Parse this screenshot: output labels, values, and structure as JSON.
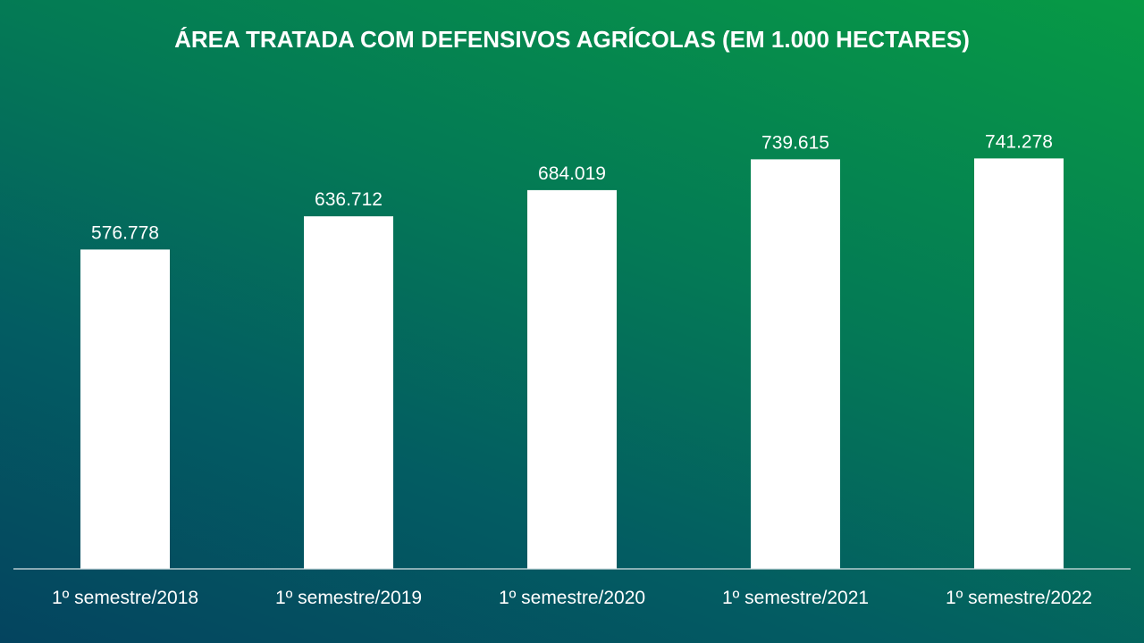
{
  "chart_data": {
    "type": "bar",
    "title": "ÁREA TRATADA COM DEFENSIVOS AGRÍCOLAS (EM 1.000 HECTARES)",
    "xlabel": "",
    "ylabel": "",
    "categories": [
      "1º semestre/2018",
      "1º semestre/2019",
      "1º semestre/2020",
      "1º semestre/2021",
      "1º semestre/2022"
    ],
    "values": [
      576778,
      636712,
      684019,
      739615,
      741278
    ],
    "value_labels": [
      "576.778",
      "636.712",
      "684.019",
      "739.615",
      "741.278"
    ],
    "ylim": [
      0,
      800000
    ],
    "grid": false,
    "legend": "none",
    "colors": {
      "bar": "#ffffff",
      "text": "#ffffff",
      "background_start": "#04445f",
      "background_end": "#079a45"
    }
  }
}
